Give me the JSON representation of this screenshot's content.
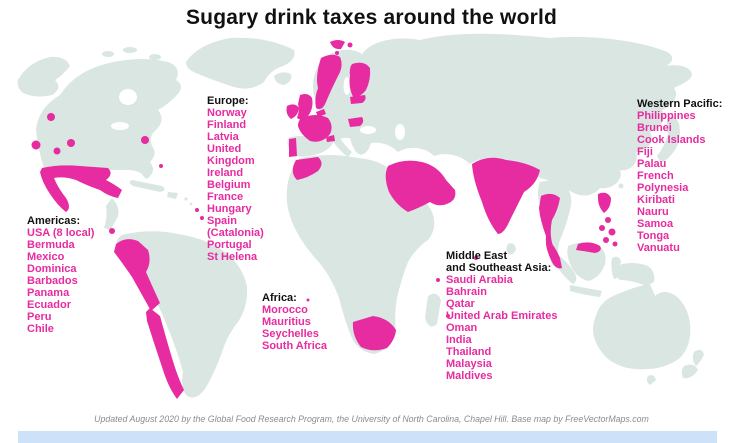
{
  "title": "Sugary drink taxes around the world",
  "footer": "Updated August 2020 by the Global Food Research Program, the University of North Carolina, Chapel Hill. Base map by FreeVectorMaps.com",
  "colors": {
    "tax": "#E72BA0",
    "land": "#D9E6E2",
    "title_text": "#111111",
    "footer_text": "#8C8C8C",
    "bottom_bar": "#CDE1F8",
    "background": "#FFFFFF"
  },
  "legend_meaning": "Pink areas and names indicate places with sugary drink taxes",
  "regions": [
    {
      "id": "americas",
      "header": "Americas:",
      "countries": [
        "USA (8 local)",
        "Bermuda",
        "Mexico",
        "Dominica",
        "Barbados",
        "Panama",
        "Ecuador",
        "Peru",
        "Chile"
      ]
    },
    {
      "id": "europe",
      "header": "Europe:",
      "countries": [
        "Norway",
        "Finland",
        "Latvia",
        "United Kingdom",
        "Ireland",
        "Belgium",
        "France",
        "Hungary",
        "Spain (Catalonia)",
        "Portugal",
        "St Helena"
      ]
    },
    {
      "id": "africa",
      "header": "Africa:",
      "countries": [
        "Morocco",
        "Mauritius",
        "Seychelles",
        "South Africa"
      ]
    },
    {
      "id": "middle-east-southeast-asia",
      "header": "Middle East\nand Southeast Asia:",
      "countries": [
        "Saudi Arabia",
        "Bahrain",
        "Qatar",
        "United Arab Emirates",
        "Oman",
        "India",
        "Thailand",
        "Malaysia",
        "Maldives"
      ]
    },
    {
      "id": "western-pacific",
      "header": "Western Pacific:",
      "countries": [
        "Philippines",
        "Brunei",
        "Cook Islands",
        "Fiji",
        "Palau",
        "French Polynesia",
        "Kiribati",
        "Nauru",
        "Samoa",
        "Tonga",
        "Vanuatu"
      ]
    }
  ]
}
